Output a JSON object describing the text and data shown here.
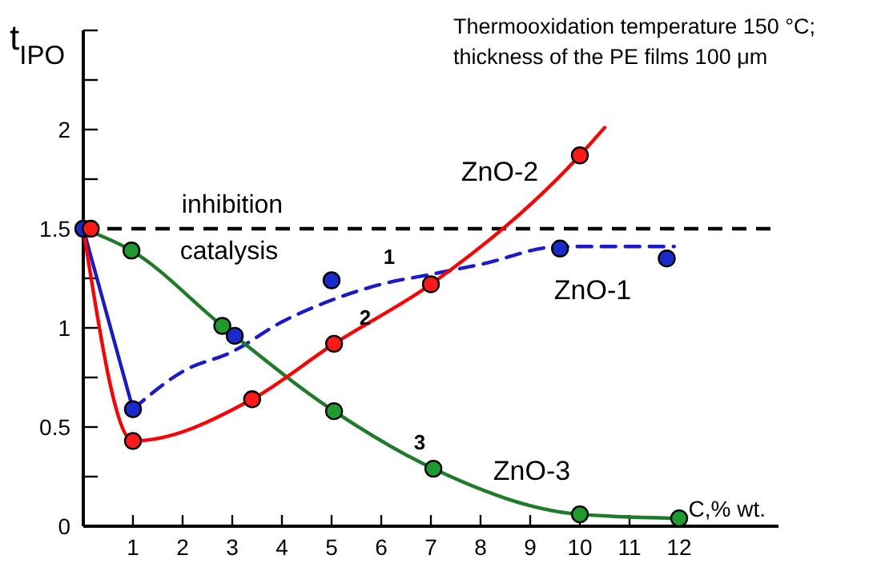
{
  "chart_data": {
    "type": "line",
    "title": "Thermooxidation temperature 150 °C;",
    "subtitle": "thickness of the PE films 100 μm",
    "xlabel": "C,% wt.",
    "ylabel": "t$_{IPO}$",
    "xlim": [
      0,
      14
    ],
    "ylim": [
      0,
      2.5
    ],
    "xticks": [
      1,
      2,
      3,
      4,
      5,
      6,
      7,
      8,
      9,
      10,
      11,
      12
    ],
    "yticks": [
      0,
      {
        "value": 0.25,
        "label": null
      },
      0.5,
      {
        "value": 0.75,
        "label": null
      },
      1,
      {
        "value": 1.25,
        "label": null
      },
      1.5,
      {
        "value": 1.75,
        "label": null
      },
      2,
      {
        "value": 2.25,
        "label": null
      },
      {
        "value": 2.5,
        "label": null
      }
    ],
    "grid": false,
    "ref_lines": [
      {
        "axis": "y",
        "value": 1.5,
        "color": "#000000",
        "line_style": "dashed"
      }
    ],
    "series": [
      {
        "color": "#1a1acc",
        "marker": "none",
        "line_style": "solid",
        "x": [
          0,
          1
        ],
        "values": [
          1.5,
          0.59
        ]
      },
      {
        "color": "#1a1acc",
        "marker": "none",
        "line_style": "dashed",
        "x": [
          1,
          2,
          3,
          4,
          5,
          6,
          7,
          8,
          9.6,
          11.9
        ],
        "values": [
          0.59,
          0.78,
          0.88,
          1.03,
          1.14,
          1.22,
          1.27,
          1.32,
          1.41,
          1.41
        ]
      },
      {
        "color": "#1f7a2a",
        "marker": "none",
        "line_style": "solid",
        "x": [
          0,
          0.97,
          2.8,
          5.05,
          7.05,
          10,
          12
        ],
        "values": [
          1.5,
          1.39,
          1.01,
          0.58,
          0.29,
          0.06,
          0.04
        ]
      },
      {
        "color": "#ff0000",
        "marker": "none",
        "line_style": "solid",
        "x": [
          0,
          1,
          3.4,
          5.05,
          7,
          10,
          10.5
        ],
        "values": [
          1.5,
          0.43,
          0.64,
          0.92,
          1.22,
          1.87,
          2.01
        ]
      },
      {
        "type": "scatter",
        "color": "#1f9a2f",
        "marker": "circle",
        "x": [
          0.97,
          2.8,
          5.05,
          7.05,
          10,
          12
        ],
        "values": [
          1.39,
          1.01,
          0.58,
          0.29,
          0.06,
          0.04
        ]
      },
      {
        "type": "scatter",
        "color": "#1a2acc",
        "marker": "circle",
        "x": [
          0,
          1,
          3.05,
          5,
          9.6,
          11.75
        ],
        "values": [
          1.5,
          0.59,
          0.96,
          1.24,
          1.4,
          1.35
        ]
      },
      {
        "type": "scatter",
        "color": "#ff1a1a",
        "marker": "circle",
        "x": [
          0.15,
          1,
          3.4,
          5.05,
          7,
          10
        ],
        "values": [
          1.5,
          0.43,
          0.64,
          0.92,
          1.22,
          1.87
        ]
      }
    ],
    "annotations": [
      "inhibition",
      "catalysis",
      "1",
      "2",
      "3",
      "ZnO-2",
      "ZnO-1",
      "ZnO-3"
    ]
  }
}
